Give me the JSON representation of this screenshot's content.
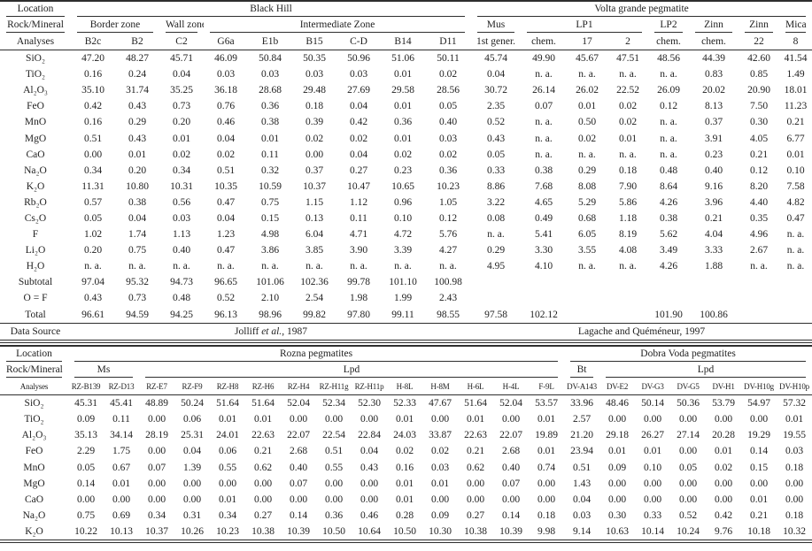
{
  "tables": [
    {
      "id": "t1",
      "name": "composition-table-black-hill-volta-grande",
      "header": {
        "location_label": "Location",
        "rock_mineral_label": "Rock/Mineral",
        "analyses_label": "Analyses",
        "locations": [
          {
            "label": "Black Hill",
            "colspan": 9
          },
          {
            "label": "Volta grande pegmatite",
            "colspan": 8
          }
        ],
        "rock_groups": [
          {
            "label": "Border zone",
            "colspan": 2
          },
          {
            "label": "Wall zone",
            "colspan": 1
          },
          {
            "label": "Intermediate Zone",
            "colspan": 6
          },
          {
            "label": "Mus",
            "colspan": 1
          },
          {
            "label": "LP1",
            "colspan": 3
          },
          {
            "label": "LP2",
            "colspan": 1
          },
          {
            "label": "Zinn",
            "colspan": 1
          },
          {
            "label": "Zinn",
            "colspan": 1
          },
          {
            "label": "Mica",
            "colspan": 1
          }
        ],
        "analyses": [
          "B2c",
          "B2",
          "C2",
          "G6a",
          "E1b",
          "B15",
          "C-D",
          "B14",
          "D11",
          "1st gener.",
          "chem.",
          "17",
          "2",
          "chem.",
          "chem.",
          "22",
          "8"
        ]
      },
      "rows": [
        {
          "label": "SiO₂",
          "values": [
            "47.20",
            "48.27",
            "45.71",
            "46.09",
            "50.84",
            "50.35",
            "50.96",
            "51.06",
            "50.11",
            "45.74",
            "49.90",
            "45.67",
            "47.51",
            "48.56",
            "44.39",
            "42.60",
            "41.54"
          ]
        },
        {
          "label": "TiO₂",
          "values": [
            "0.16",
            "0.24",
            "0.04",
            "0.03",
            "0.03",
            "0.03",
            "0.03",
            "0.01",
            "0.02",
            "0.04",
            "n. a.",
            "n. a.",
            "n. a.",
            "n. a.",
            "0.83",
            "0.85",
            "1.49"
          ]
        },
        {
          "label": "Al₂O₃",
          "values": [
            "35.10",
            "31.74",
            "35.25",
            "36.18",
            "28.68",
            "29.48",
            "27.69",
            "29.58",
            "28.56",
            "30.72",
            "26.14",
            "26.02",
            "22.52",
            "26.09",
            "20.02",
            "20.90",
            "18.01"
          ]
        },
        {
          "label": "FeO",
          "values": [
            "0.42",
            "0.43",
            "0.73",
            "0.76",
            "0.36",
            "0.18",
            "0.04",
            "0.01",
            "0.05",
            "2.35",
            "0.07",
            "0.01",
            "0.02",
            "0.12",
            "8.13",
            "7.50",
            "11.23"
          ]
        },
        {
          "label": "MnO",
          "values": [
            "0.16",
            "0.29",
            "0.20",
            "0.46",
            "0.38",
            "0.39",
            "0.42",
            "0.36",
            "0.40",
            "0.52",
            "n. a.",
            "0.50",
            "0.02",
            "n. a.",
            "0.37",
            "0.30",
            "0.21"
          ]
        },
        {
          "label": "MgO",
          "values": [
            "0.51",
            "0.43",
            "0.01",
            "0.04",
            "0.01",
            "0.02",
            "0.02",
            "0.01",
            "0.03",
            "0.43",
            "n. a.",
            "0.02",
            "0.01",
            "n. a.",
            "3.91",
            "4.05",
            "6.77"
          ]
        },
        {
          "label": "CaO",
          "values": [
            "0.00",
            "0.01",
            "0.02",
            "0.02",
            "0.11",
            "0.00",
            "0.04",
            "0.02",
            "0.02",
            "0.05",
            "n. a.",
            "n. a.",
            "n. a.",
            "n. a.",
            "0.23",
            "0.21",
            "0.01"
          ]
        },
        {
          "label": "Na₂O",
          "values": [
            "0.34",
            "0.20",
            "0.34",
            "0.51",
            "0.32",
            "0.37",
            "0.27",
            "0.23",
            "0.36",
            "0.33",
            "0.38",
            "0.29",
            "0.18",
            "0.48",
            "0.40",
            "0.12",
            "0.10"
          ]
        },
        {
          "label": "K₂O",
          "values": [
            "11.31",
            "10.80",
            "10.31",
            "10.35",
            "10.59",
            "10.37",
            "10.47",
            "10.65",
            "10.23",
            "8.86",
            "7.68",
            "8.08",
            "7.90",
            "8.64",
            "9.16",
            "8.20",
            "7.58"
          ]
        },
        {
          "label": "Rb₂O",
          "values": [
            "0.57",
            "0.38",
            "0.56",
            "0.47",
            "0.75",
            "1.15",
            "1.12",
            "0.96",
            "1.05",
            "3.22",
            "4.65",
            "5.29",
            "5.86",
            "4.26",
            "3.96",
            "4.40",
            "4.82"
          ]
        },
        {
          "label": "Cs₂O",
          "values": [
            "0.05",
            "0.04",
            "0.03",
            "0.04",
            "0.15",
            "0.13",
            "0.11",
            "0.10",
            "0.12",
            "0.08",
            "0.49",
            "0.68",
            "1.18",
            "0.38",
            "0.21",
            "0.35",
            "0.47"
          ]
        },
        {
          "label": "F",
          "values": [
            "1.02",
            "1.74",
            "1.13",
            "1.23",
            "4.98",
            "6.04",
            "4.71",
            "4.72",
            "5.76",
            "n. a.",
            "5.41",
            "6.05",
            "8.19",
            "5.62",
            "4.04",
            "4.96",
            "n. a."
          ]
        },
        {
          "label": "Li₂O",
          "values": [
            "0.20",
            "0.75",
            "0.40",
            "0.47",
            "3.86",
            "3.85",
            "3.90",
            "3.39",
            "4.27",
            "0.29",
            "3.30",
            "3.55",
            "4.08",
            "3.49",
            "3.33",
            "2.67",
            "n. a."
          ]
        },
        {
          "label": "H₂O",
          "values": [
            "n. a.",
            "n. a.",
            "n. a.",
            "n. a.",
            "n. a.",
            "n. a.",
            "n. a.",
            "n. a.",
            "n. a.",
            "4.95",
            "4.10",
            "n. a.",
            "n. a.",
            "4.26",
            "1.88",
            "n. a.",
            "n. a."
          ]
        },
        {
          "label": "Subtotal",
          "values": [
            "97.04",
            "95.32",
            "94.73",
            "96.65",
            "101.06",
            "102.36",
            "99.78",
            "101.10",
            "100.98",
            "",
            "",
            "",
            "",
            "",
            "",
            "",
            ""
          ]
        },
        {
          "label": "O = F",
          "values": [
            "0.43",
            "0.73",
            "0.48",
            "0.52",
            "2.10",
            "2.54",
            "1.98",
            "1.99",
            "2.43",
            "",
            "",
            "",
            "",
            "",
            "",
            "",
            ""
          ]
        },
        {
          "label": "Total",
          "values": [
            "96.61",
            "94.59",
            "94.25",
            "96.13",
            "98.96",
            "99.82",
            "97.80",
            "99.11",
            "98.55",
            "97.58",
            "102.12",
            "",
            "",
            "101.90",
            "100.86",
            "",
            ""
          ]
        }
      ],
      "footer": {
        "label": "Data Source",
        "sources": [
          {
            "colspan": 9,
            "parts": [
              {
                "t": "Jolliff ",
                "i": false
              },
              {
                "t": "et al.",
                "i": true
              },
              {
                "t": ", 1987",
                "i": false
              }
            ]
          },
          {
            "colspan": 8,
            "parts": [
              {
                "t": "Lagache and Quéméneur, 1997",
                "i": false
              }
            ]
          }
        ]
      }
    },
    {
      "id": "t2",
      "name": "composition-table-rozna-dobra-voda",
      "header": {
        "location_label": "Location",
        "rock_mineral_label": "Rock/Mineral",
        "analyses_label": "Analyses",
        "locations": [
          {
            "label": "Rozna pegmatites",
            "colspan": 14
          },
          {
            "label": "Dobra Voda pegmatites",
            "colspan": 7
          }
        ],
        "rock_groups": [
          {
            "label": "Ms",
            "colspan": 2
          },
          {
            "label": "Lpd",
            "colspan": 12
          },
          {
            "label": "Bt",
            "colspan": 1
          },
          {
            "label": "Lpd",
            "colspan": 6
          }
        ],
        "analyses": [
          "RZ-B139",
          "RZ-D13",
          "RZ-E7",
          "RZ-F9",
          "RZ-H8",
          "RZ-H6",
          "RZ-H4",
          "RZ-H11g",
          "RZ-H11p",
          "H-8L",
          "H-8M",
          "H-6L",
          "H-4L",
          "F-9L",
          "DV-A143",
          "DV-E2",
          "DV-G3",
          "DV-G5",
          "DV-H1",
          "DV-H10g",
          "DV-H10p"
        ]
      },
      "rows": [
        {
          "label": "SiO₂",
          "values": [
            "45.31",
            "45.41",
            "48.89",
            "50.24",
            "51.64",
            "51.64",
            "52.04",
            "52.34",
            "52.30",
            "52.33",
            "47.67",
            "51.64",
            "52.04",
            "53.57",
            "33.96",
            "48.46",
            "50.14",
            "50.36",
            "53.79",
            "54.97",
            "57.32"
          ]
        },
        {
          "label": "TiO₂",
          "values": [
            "0.09",
            "0.11",
            "0.00",
            "0.06",
            "0.01",
            "0.01",
            "0.00",
            "0.00",
            "0.00",
            "0.01",
            "0.00",
            "0.01",
            "0.00",
            "0.01",
            "2.57",
            "0.00",
            "0.00",
            "0.00",
            "0.00",
            "0.00",
            "0.01"
          ]
        },
        {
          "label": "Al₂O₃",
          "values": [
            "35.13",
            "34.14",
            "28.19",
            "25.31",
            "24.01",
            "22.63",
            "22.07",
            "22.54",
            "22.84",
            "24.03",
            "33.87",
            "22.63",
            "22.07",
            "19.89",
            "21.20",
            "29.18",
            "26.27",
            "27.14",
            "20.28",
            "19.29",
            "19.55"
          ]
        },
        {
          "label": "FeO",
          "values": [
            "2.29",
            "1.75",
            "0.00",
            "0.04",
            "0.06",
            "0.21",
            "2.68",
            "0.51",
            "0.04",
            "0.02",
            "0.02",
            "0.21",
            "2.68",
            "0.01",
            "23.94",
            "0.01",
            "0.01",
            "0.00",
            "0.01",
            "0.14",
            "0.03"
          ]
        },
        {
          "label": "MnO",
          "values": [
            "0.05",
            "0.67",
            "0.07",
            "1.39",
            "0.55",
            "0.62",
            "0.40",
            "0.55",
            "0.43",
            "0.16",
            "0.03",
            "0.62",
            "0.40",
            "0.74",
            "0.51",
            "0.09",
            "0.10",
            "0.05",
            "0.02",
            "0.15",
            "0.18"
          ]
        },
        {
          "label": "MgO",
          "values": [
            "0.14",
            "0.01",
            "0.00",
            "0.00",
            "0.00",
            "0.00",
            "0.07",
            "0.00",
            "0.00",
            "0.01",
            "0.01",
            "0.00",
            "0.07",
            "0.00",
            "1.43",
            "0.00",
            "0.00",
            "0.00",
            "0.00",
            "0.00",
            "0.00"
          ]
        },
        {
          "label": "CaO",
          "values": [
            "0.00",
            "0.00",
            "0.00",
            "0.00",
            "0.01",
            "0.00",
            "0.00",
            "0.00",
            "0.00",
            "0.01",
            "0.00",
            "0.00",
            "0.00",
            "0.00",
            "0.04",
            "0.00",
            "0.00",
            "0.00",
            "0.00",
            "0.01",
            "0.00"
          ]
        },
        {
          "label": "Na₂O",
          "values": [
            "0.75",
            "0.69",
            "0.34",
            "0.31",
            "0.34",
            "0.27",
            "0.14",
            "0.36",
            "0.46",
            "0.28",
            "0.09",
            "0.27",
            "0.14",
            "0.18",
            "0.03",
            "0.30",
            "0.33",
            "0.52",
            "0.42",
            "0.21",
            "0.18"
          ]
        },
        {
          "label": "K₂O",
          "values": [
            "10.22",
            "10.13",
            "10.37",
            "10.26",
            "10.23",
            "10.38",
            "10.39",
            "10.50",
            "10.64",
            "10.50",
            "10.30",
            "10.38",
            "10.39",
            "9.98",
            "9.14",
            "10.63",
            "10.14",
            "10.24",
            "9.76",
            "10.18",
            "10.32"
          ]
        }
      ]
    }
  ]
}
